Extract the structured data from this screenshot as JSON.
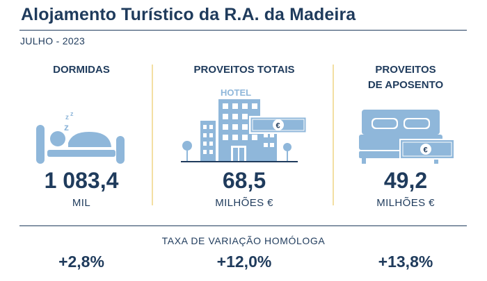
{
  "header": {
    "title": "Alojamento Turístico da R.A. da Madeira",
    "period": "JULHO - 2023"
  },
  "indicators": [
    {
      "label": "DORMIDAS",
      "value": "1 083,4",
      "unit": "MIL",
      "icon": "sleeping-person-icon"
    },
    {
      "label": "PROVEITOS TOTAIS",
      "value": "68,5",
      "unit": "MILHÕES €",
      "icon": "hotel-building-icon",
      "icon_text": "HOTEL"
    },
    {
      "label": "PROVEITOS\nDE APOSENTO",
      "value": "49,2",
      "unit": "MILHÕES €",
      "icon": "bed-icon"
    }
  ],
  "variation": {
    "label": "TAXA DE VARIAÇÃO HOMÓLOGA",
    "values": [
      "+2,8%",
      "+12,0%",
      "+13,8%"
    ]
  },
  "colors": {
    "text": "#1f3b5c",
    "icon_fill": "#8fb7da",
    "divider": "#f3dfa2"
  }
}
